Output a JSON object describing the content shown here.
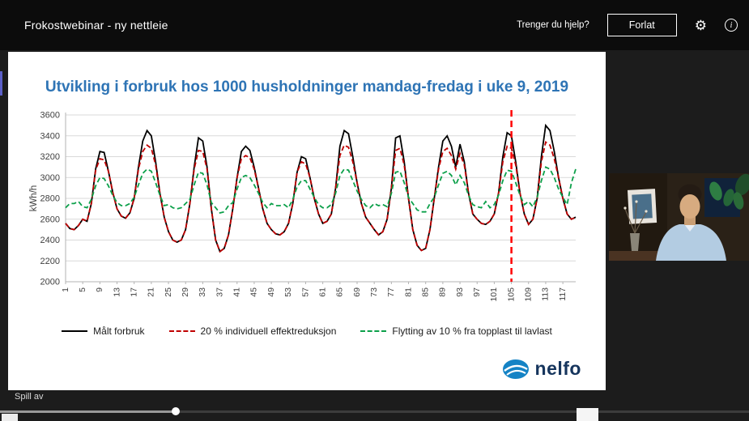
{
  "window": {
    "title": "Frokostwebinar - ny nettleie",
    "help_text": "Trenger du hjelp?",
    "leave_button": "Forlat",
    "settings_icon": "gear-icon",
    "info_icon": "info-icon"
  },
  "slide": {
    "title": "Utvikling i forbruk hos 1000 husholdninger  mandag-fredag i uke 9, 2019",
    "logo_text": "nelfo"
  },
  "player": {
    "play_label": "Spill av",
    "progress_percent": 23.5
  },
  "chart_data": {
    "type": "line",
    "title": "Utvikling i forbruk hos 1000 husholdninger  mandag-fredag i uke 9, 2019",
    "xlabel": "",
    "ylabel": "kWh/h",
    "ylim": [
      2000,
      3600
    ],
    "y_tick_step": 200,
    "x_range": [
      1,
      120
    ],
    "x_ticks": [
      1,
      5,
      9,
      13,
      17,
      21,
      25,
      29,
      33,
      37,
      41,
      45,
      49,
      53,
      57,
      61,
      65,
      69,
      73,
      77,
      81,
      85,
      89,
      93,
      97,
      101,
      105,
      109,
      113,
      117
    ],
    "grid": true,
    "legend_position": "bottom",
    "event_line_x": 105,
    "event_line_color": "#ff0000",
    "series": [
      {
        "name": "Målt forbruk",
        "color": "#000000",
        "dash": "solid",
        "values": [
          2560,
          2510,
          2500,
          2540,
          2600,
          2580,
          2750,
          3080,
          3250,
          3240,
          3060,
          2860,
          2700,
          2630,
          2610,
          2660,
          2800,
          3100,
          3350,
          3450,
          3400,
          3150,
          2850,
          2620,
          2480,
          2400,
          2380,
          2400,
          2500,
          2750,
          3100,
          3380,
          3350,
          3100,
          2700,
          2400,
          2290,
          2320,
          2450,
          2700,
          3000,
          3250,
          3300,
          3260,
          3100,
          2900,
          2700,
          2560,
          2500,
          2460,
          2450,
          2480,
          2560,
          2750,
          3050,
          3200,
          3180,
          3000,
          2800,
          2650,
          2560,
          2580,
          2650,
          2900,
          3300,
          3450,
          3420,
          3200,
          2950,
          2750,
          2620,
          2560,
          2500,
          2450,
          2480,
          2600,
          2900,
          3380,
          3400,
          3150,
          2800,
          2500,
          2350,
          2300,
          2320,
          2500,
          2800,
          3100,
          3350,
          3400,
          3300,
          3100,
          3320,
          3150,
          2850,
          2650,
          2600,
          2560,
          2550,
          2580,
          2650,
          2850,
          3200,
          3430,
          3400,
          3150,
          2850,
          2650,
          2550,
          2600,
          2800,
          3200,
          3500,
          3450,
          3250,
          3000,
          2800,
          2650,
          2600,
          2620
        ]
      },
      {
        "name": "20 % individuell effektreduksjon",
        "color": "#c00000",
        "dash": "dashed",
        "values": [
          2560,
          2510,
          2500,
          2540,
          2600,
          2580,
          2750,
          3070,
          3180,
          3170,
          3060,
          2860,
          2700,
          2630,
          2610,
          2660,
          2800,
          3080,
          3250,
          3310,
          3280,
          3120,
          2850,
          2620,
          2480,
          2400,
          2380,
          2400,
          2500,
          2750,
          3080,
          3260,
          3250,
          3080,
          2700,
          2400,
          2290,
          2320,
          2450,
          2700,
          3000,
          3180,
          3210,
          3190,
          3080,
          2900,
          2700,
          2560,
          2500,
          2460,
          2450,
          2480,
          2560,
          2750,
          3050,
          3150,
          3130,
          3000,
          2800,
          2650,
          2560,
          2580,
          2650,
          2900,
          3210,
          3310,
          3290,
          3150,
          2950,
          2750,
          2620,
          2560,
          2500,
          2450,
          2480,
          2600,
          2900,
          3260,
          3280,
          3120,
          2800,
          2500,
          2350,
          2300,
          2320,
          2500,
          2800,
          3080,
          3250,
          3280,
          3210,
          3080,
          3230,
          3120,
          2850,
          2650,
          2600,
          2560,
          2550,
          2580,
          2650,
          2850,
          3150,
          3300,
          3280,
          3120,
          2850,
          2650,
          2550,
          2600,
          2800,
          3150,
          3340,
          3310,
          3180,
          3000,
          2800,
          2650,
          2600,
          2620
        ]
      },
      {
        "name": "Flytting av 10 % fra topplast til lavlast",
        "color": "#0ca04a",
        "dash": "dashed",
        "values": [
          2710,
          2750,
          2750,
          2770,
          2720,
          2710,
          2790,
          2920,
          3000,
          2990,
          2920,
          2830,
          2760,
          2730,
          2730,
          2750,
          2810,
          2930,
          3040,
          3080,
          3060,
          2950,
          2830,
          2730,
          2740,
          2710,
          2700,
          2710,
          2750,
          2790,
          2930,
          3050,
          3040,
          2930,
          2760,
          2710,
          2660,
          2670,
          2730,
          2760,
          2890,
          3000,
          3020,
          3000,
          2930,
          2850,
          2760,
          2710,
          2750,
          2730,
          2730,
          2740,
          2710,
          2790,
          2910,
          2970,
          2970,
          2890,
          2810,
          2740,
          2710,
          2710,
          2740,
          2850,
          3020,
          3080,
          3070,
          2970,
          2870,
          2790,
          2730,
          2710,
          2750,
          2730,
          2740,
          2720,
          2850,
          3050,
          3060,
          2950,
          2810,
          2750,
          2690,
          2670,
          2670,
          2750,
          2810,
          2930,
          3040,
          3060,
          3020,
          2930,
          3020,
          2950,
          2830,
          2740,
          2720,
          2710,
          2770,
          2710,
          2740,
          2830,
          2970,
          3070,
          3060,
          2950,
          2830,
          2740,
          2770,
          2720,
          2810,
          2970,
          3100,
          3080,
          3000,
          2890,
          2810,
          2740,
          2950,
          3080
        ]
      }
    ]
  }
}
